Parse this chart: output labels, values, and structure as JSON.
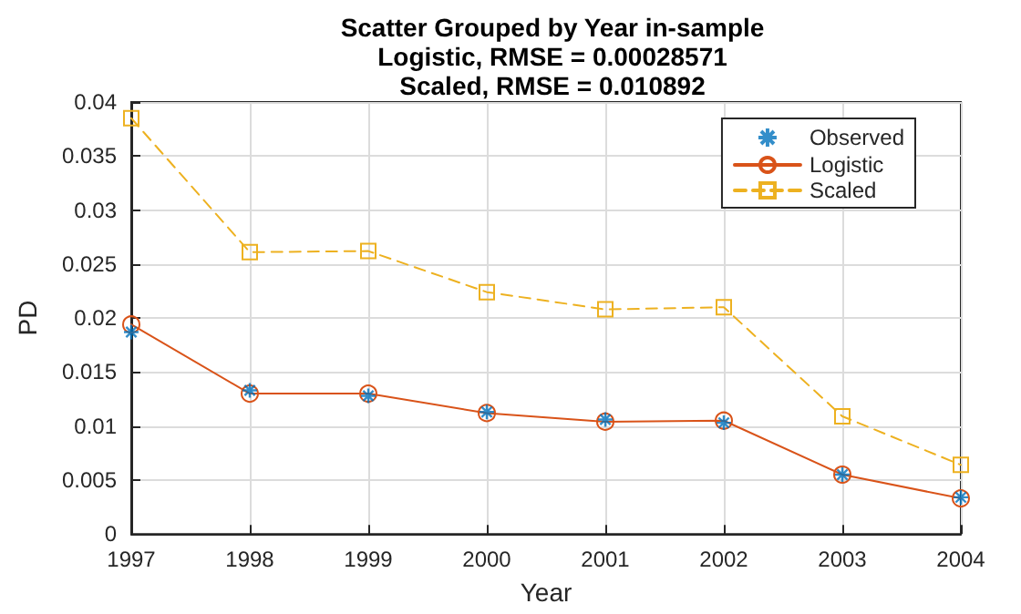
{
  "chart_data": {
    "type": "line",
    "title": "Scatter Grouped by Year in-sample\nLogistic, RMSE = 0.00028571\nScaled, RMSE = 0.010892",
    "xlabel": "Year",
    "ylabel": "PD",
    "x": [
      1997,
      1998,
      1999,
      2000,
      2001,
      2002,
      2003,
      2004
    ],
    "series": [
      {
        "name": "Observed",
        "type": "scatter",
        "marker": "cross",
        "color": "#0072bd",
        "values": [
          0.0187,
          0.0133,
          0.0128,
          0.0113,
          0.0106,
          0.0103,
          0.0055,
          0.0034
        ]
      },
      {
        "name": "Logistic",
        "marker": "circle",
        "line_style": "solid",
        "color": "#d95319",
        "values": [
          0.0194,
          0.013,
          0.013,
          0.0112,
          0.0104,
          0.0105,
          0.0055,
          0.0033
        ]
      },
      {
        "name": "Scaled",
        "marker": "square",
        "line_style": "dashed",
        "color": "#edb120",
        "values": [
          0.0385,
          0.0261,
          0.0262,
          0.0224,
          0.0208,
          0.021,
          0.0109,
          0.0064
        ]
      }
    ],
    "xlim": [
      1997,
      2004
    ],
    "xticks": [
      1997,
      1998,
      1999,
      2000,
      2001,
      2002,
      2003,
      2004
    ],
    "ylim": [
      0,
      0.04
    ],
    "yticks": [
      0,
      0.005,
      0.01,
      0.015,
      0.02,
      0.025,
      0.03,
      0.035,
      0.04
    ],
    "grid": true,
    "legend": "top right"
  }
}
